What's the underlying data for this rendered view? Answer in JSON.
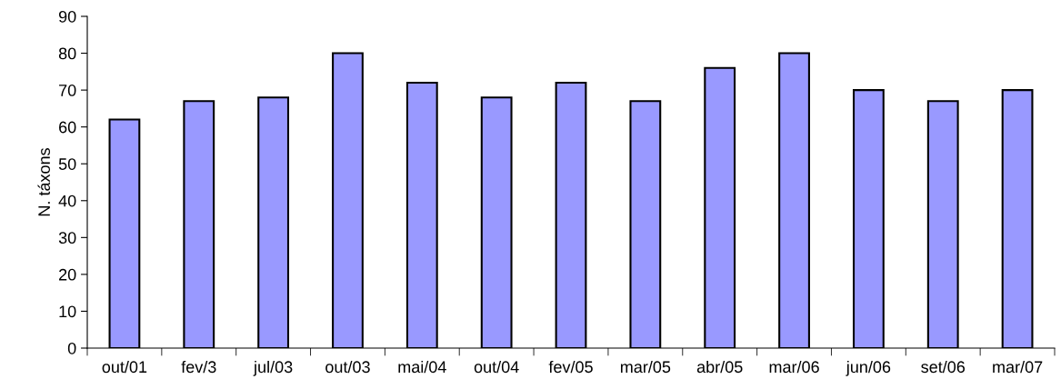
{
  "chart_data": {
    "type": "bar",
    "ylabel": "N. táxons",
    "categories": [
      "out/01",
      "fev/3",
      "jul/03",
      "out/03",
      "mai/04",
      "out/04",
      "fev/05",
      "mar/05",
      "abr/05",
      "mar/06",
      "jun/06",
      "set/06",
      "mar/07"
    ],
    "values": [
      62,
      67,
      68,
      80,
      72,
      68,
      72,
      67,
      76,
      80,
      70,
      67,
      70
    ],
    "color": "#9999ff",
    "ylim": [
      0,
      90
    ],
    "yticks": [
      0,
      10,
      20,
      30,
      40,
      50,
      60,
      70,
      80,
      90
    ],
    "grid": false
  }
}
